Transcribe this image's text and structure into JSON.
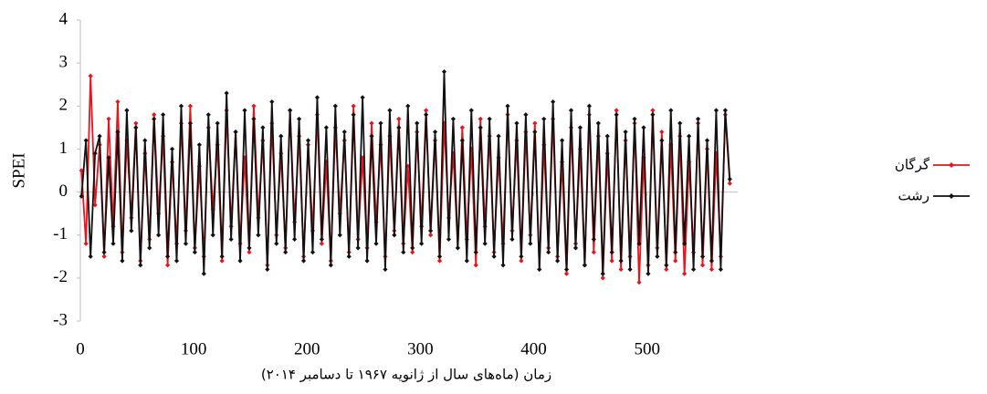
{
  "chart_data": {
    "type": "line",
    "y_label": "SPEI",
    "x_label": "زمان (ماه‌های سال از ژانویه ۱۹۶۷ تا دسامبر ۲۰۱۴)",
    "x": [
      1,
      5,
      9,
      13,
      17,
      21,
      25,
      29,
      33,
      37,
      41,
      45,
      49,
      53,
      57,
      61,
      65,
      69,
      73,
      77,
      81,
      85,
      89,
      93,
      97,
      101,
      105,
      109,
      113,
      117,
      121,
      125,
      129,
      133,
      137,
      141,
      145,
      149,
      153,
      157,
      161,
      165,
      169,
      173,
      177,
      181,
      185,
      189,
      193,
      197,
      201,
      205,
      209,
      213,
      217,
      221,
      225,
      229,
      233,
      237,
      241,
      245,
      249,
      253,
      257,
      261,
      265,
      269,
      273,
      277,
      281,
      285,
      289,
      293,
      297,
      301,
      305,
      309,
      313,
      317,
      321,
      325,
      329,
      333,
      337,
      341,
      345,
      349,
      353,
      357,
      361,
      365,
      369,
      373,
      377,
      381,
      385,
      389,
      393,
      397,
      401,
      405,
      409,
      413,
      417,
      421,
      425,
      429,
      433,
      437,
      441,
      445,
      449,
      453,
      457,
      461,
      465,
      469,
      473,
      477,
      481,
      485,
      489,
      493,
      497,
      501,
      505,
      509,
      513,
      517,
      521,
      525,
      529,
      533,
      537,
      541,
      545,
      549,
      553,
      557,
      561,
      565,
      569,
      573
    ],
    "series": [
      {
        "name": "گرگان",
        "color": "#e8141b",
        "values": [
          0.5,
          -1.2,
          2.7,
          -0.3,
          1.1,
          -1.5,
          1.7,
          -0.8,
          2.1,
          -1.4,
          1.2,
          -0.6,
          1.6,
          -1.6,
          0.9,
          -1.1,
          1.8,
          -0.5,
          1.3,
          -1.7,
          0.7,
          -1.2,
          1.6,
          -0.9,
          2.0,
          -1.3,
          0.6,
          -1.5,
          1.5,
          -0.4,
          1.1,
          -1.6,
          1.9,
          -0.8,
          1.4,
          -1.2,
          0.8,
          -1.4,
          2.0,
          -0.6,
          1.2,
          -1.7,
          1.6,
          -1.0,
          0.9,
          -1.3,
          1.9,
          -0.7,
          1.3,
          -1.5,
          1.1,
          -0.9,
          1.8,
          -1.2,
          0.7,
          -1.6,
          1.5,
          -0.5,
          1.2,
          -1.4,
          2.0,
          -1.1,
          0.8,
          -1.3,
          1.6,
          -0.7,
          1.1,
          -1.5,
          1.3,
          -0.9,
          1.7,
          -1.2,
          0.6,
          -1.4,
          1.4,
          -0.8,
          1.9,
          -1.0,
          1.2,
          -1.6,
          1.6,
          -0.6,
          0.9,
          -1.3,
          1.5,
          -1.1,
          1.0,
          -1.7,
          1.7,
          -0.8,
          1.3,
          -1.4,
          0.8,
          -1.2,
          1.8,
          -0.9,
          1.2,
          -1.6,
          1.4,
          -1.0,
          1.6,
          -1.8,
          1.1,
          -1.3,
          1.7,
          -1.5,
          0.7,
          -1.9,
          1.5,
          -1.2,
          1.0,
          -1.7,
          1.8,
          -1.4,
          1.3,
          -2.0,
          0.9,
          -1.6,
          1.9,
          -1.8,
          1.2,
          -1.5,
          1.6,
          -2.1,
          0.8,
          -1.7,
          1.9,
          -1.3,
          1.4,
          -1.8,
          1.1,
          -1.6,
          1.3,
          -1.9,
          0.7,
          -1.4,
          1.6,
          -1.7,
          1.0,
          -1.8,
          0.9,
          -1.5,
          1.8,
          0.2
        ]
      },
      {
        "name": "رشت",
        "color": "#111111",
        "values": [
          -0.1,
          1.2,
          -1.5,
          0.9,
          1.3,
          -1.4,
          0.8,
          -1.2,
          1.4,
          -1.6,
          1.9,
          -0.9,
          1.5,
          -1.7,
          1.2,
          -1.3,
          1.7,
          -1.0,
          1.8,
          -1.5,
          1.0,
          -1.6,
          2.0,
          -1.2,
          1.6,
          -1.4,
          1.1,
          -1.9,
          1.8,
          -1.0,
          1.6,
          -1.5,
          2.3,
          -1.1,
          1.4,
          -1.6,
          1.9,
          -1.3,
          1.7,
          -1.0,
          1.5,
          -1.8,
          2.1,
          -1.2,
          1.3,
          -1.4,
          1.9,
          -1.1,
          1.7,
          -1.6,
          1.2,
          -1.4,
          2.2,
          -1.1,
          1.5,
          -1.7,
          2.0,
          -1.0,
          1.4,
          -1.5,
          1.8,
          -1.3,
          2.2,
          -1.6,
          1.3,
          -1.2,
          1.6,
          -1.8,
          1.9,
          -1.0,
          1.5,
          -1.4,
          2.0,
          -1.3,
          1.6,
          -1.2,
          1.8,
          -0.9,
          1.4,
          -1.5,
          2.8,
          -1.1,
          1.7,
          -1.3,
          1.2,
          -1.6,
          1.9,
          -1.4,
          1.5,
          -1.2,
          1.7,
          -1.5,
          1.3,
          -1.7,
          2.0,
          -1.1,
          1.6,
          -1.5,
          1.8,
          -1.2,
          1.4,
          -1.8,
          1.7,
          -1.4,
          2.1,
          -1.6,
          1.2,
          -1.8,
          1.9,
          -1.3,
          1.5,
          -1.7,
          2.0,
          -1.1,
          1.6,
          -1.9,
          1.3,
          -1.4,
          1.8,
          -1.6,
          1.4,
          -1.8,
          1.7,
          -1.2,
          1.5,
          -1.9,
          1.8,
          -1.5,
          1.2,
          -1.7,
          1.9,
          -1.4,
          1.6,
          -1.2,
          1.3,
          -1.8,
          1.7,
          -1.5,
          1.2,
          -1.6,
          1.9,
          -1.8,
          1.9,
          0.3
        ]
      }
    ],
    "xlim": [
      0,
      580
    ],
    "xticks": [
      0,
      100,
      200,
      300,
      400,
      500
    ],
    "ylim": [
      -3,
      4
    ],
    "yticks": [
      -3,
      -2,
      -1,
      0,
      1,
      2,
      3,
      4
    ],
    "legend": "right"
  }
}
